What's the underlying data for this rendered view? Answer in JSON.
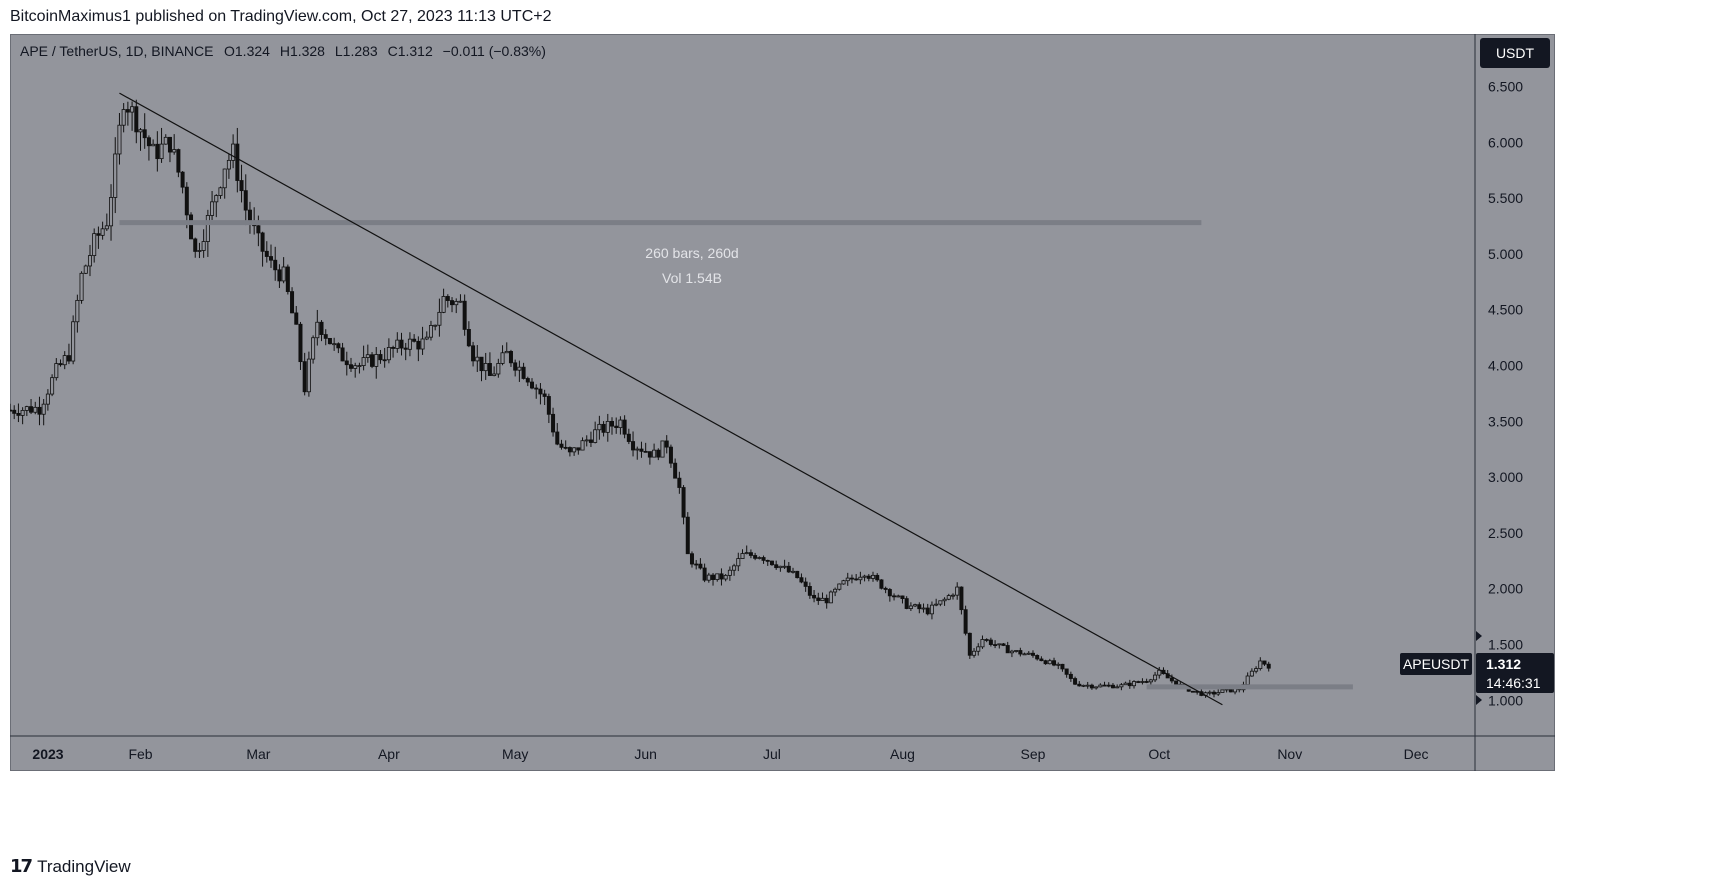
{
  "header": {
    "published_text": "BitcoinMaximus1 published on TradingView.com, Oct 27, 2023 11:13 UTC+2"
  },
  "footer": {
    "logo_text": "TradingView",
    "logo_icon": "tradingview-logo-icon"
  },
  "colors": {
    "background": "#93959c",
    "candle": "#111111",
    "frame": "#6b6e76"
  },
  "chart_data": {
    "type": "candlestick",
    "symbol_info": "APE / TetherUS, 1D, BINANCE",
    "ohlc": {
      "open": "O1.324",
      "high": "H1.328",
      "low": "L1.283",
      "close": "C1.312",
      "change": "−0.011 (−0.83%)"
    },
    "currency_label": "USDT",
    "ylim": [
      0.68,
      6.97
    ],
    "y_ticks": [
      "6.500",
      "6.000",
      "5.500",
      "5.000",
      "4.500",
      "4.000",
      "3.500",
      "3.000",
      "2.500",
      "2.000",
      "1.500",
      "1.000"
    ],
    "y_tick_values": [
      6.5,
      6.0,
      5.5,
      5.0,
      4.5,
      4.0,
      3.5,
      3.0,
      2.5,
      2.0,
      1.5,
      1.0
    ],
    "xlim": [
      "2023-01-01",
      "2023-12-15"
    ],
    "x_ticks": [
      {
        "label": "2023",
        "date": "2023-01-01"
      },
      {
        "label": "Feb",
        "date": "2023-02-01"
      },
      {
        "label": "Mar",
        "date": "2023-03-01"
      },
      {
        "label": "Apr",
        "date": "2023-04-01"
      },
      {
        "label": "May",
        "date": "2023-05-01"
      },
      {
        "label": "Jun",
        "date": "2023-06-01"
      },
      {
        "label": "Jul",
        "date": "2023-07-01"
      },
      {
        "label": "Aug",
        "date": "2023-08-01"
      },
      {
        "label": "Sep",
        "date": "2023-09-01"
      },
      {
        "label": "Oct",
        "date": "2023-10-01"
      },
      {
        "label": "Nov",
        "date": "2023-11-01"
      },
      {
        "label": "Dec",
        "date": "2023-12-01"
      }
    ],
    "series": [
      {
        "date": "2023-01-01",
        "close": 3.6
      },
      {
        "date": "2023-01-08",
        "close": 3.62
      },
      {
        "date": "2023-01-12",
        "close": 3.95
      },
      {
        "date": "2023-01-15",
        "close": 4.1
      },
      {
        "date": "2023-01-18",
        "close": 4.8
      },
      {
        "date": "2023-01-21",
        "close": 5.1
      },
      {
        "date": "2023-01-24",
        "close": 5.3
      },
      {
        "date": "2023-01-26",
        "close": 5.8
      },
      {
        "date": "2023-01-28",
        "close": 6.4
      },
      {
        "date": "2023-01-31",
        "close": 6.2
      },
      {
        "date": "2023-02-04",
        "close": 5.9
      },
      {
        "date": "2023-02-08",
        "close": 6.0
      },
      {
        "date": "2023-02-11",
        "close": 5.6
      },
      {
        "date": "2023-02-14",
        "close": 5.0
      },
      {
        "date": "2023-02-17",
        "close": 5.3
      },
      {
        "date": "2023-02-21",
        "close": 5.8
      },
      {
        "date": "2023-02-23",
        "close": 5.9
      },
      {
        "date": "2023-02-26",
        "close": 5.4
      },
      {
        "date": "2023-03-01",
        "close": 5.1
      },
      {
        "date": "2023-03-04",
        "close": 4.9
      },
      {
        "date": "2023-03-07",
        "close": 4.8
      },
      {
        "date": "2023-03-10",
        "close": 4.3
      },
      {
        "date": "2023-03-12",
        "close": 3.8
      },
      {
        "date": "2023-03-15",
        "close": 4.4
      },
      {
        "date": "2023-03-20",
        "close": 4.1
      },
      {
        "date": "2023-03-25",
        "close": 4.0
      },
      {
        "date": "2023-03-31",
        "close": 4.1
      },
      {
        "date": "2023-04-05",
        "close": 4.2
      },
      {
        "date": "2023-04-10",
        "close": 4.2
      },
      {
        "date": "2023-04-14",
        "close": 4.6
      },
      {
        "date": "2023-04-18",
        "close": 4.55
      },
      {
        "date": "2023-04-21",
        "close": 4.1
      },
      {
        "date": "2023-04-25",
        "close": 3.9
      },
      {
        "date": "2023-04-29",
        "close": 4.1
      },
      {
        "date": "2023-05-04",
        "close": 3.9
      },
      {
        "date": "2023-05-08",
        "close": 3.7
      },
      {
        "date": "2023-05-11",
        "close": 3.3
      },
      {
        "date": "2023-05-14",
        "close": 3.2
      },
      {
        "date": "2023-05-20",
        "close": 3.4
      },
      {
        "date": "2023-05-26",
        "close": 3.5
      },
      {
        "date": "2023-05-29",
        "close": 3.3
      },
      {
        "date": "2023-06-03",
        "close": 3.2
      },
      {
        "date": "2023-06-06",
        "close": 3.3
      },
      {
        "date": "2023-06-09",
        "close": 2.9
      },
      {
        "date": "2023-06-11",
        "close": 2.3
      },
      {
        "date": "2023-06-15",
        "close": 2.1
      },
      {
        "date": "2023-06-20",
        "close": 2.1
      },
      {
        "date": "2023-06-24",
        "close": 2.3
      },
      {
        "date": "2023-06-28",
        "close": 2.3
      },
      {
        "date": "2023-07-03",
        "close": 2.2
      },
      {
        "date": "2023-07-07",
        "close": 2.1
      },
      {
        "date": "2023-07-11",
        "close": 1.9
      },
      {
        "date": "2023-07-14",
        "close": 1.9
      },
      {
        "date": "2023-07-18",
        "close": 2.05
      },
      {
        "date": "2023-07-23",
        "close": 2.15
      },
      {
        "date": "2023-07-28",
        "close": 2.0
      },
      {
        "date": "2023-08-02",
        "close": 1.85
      },
      {
        "date": "2023-08-07",
        "close": 1.8
      },
      {
        "date": "2023-08-11",
        "close": 1.9
      },
      {
        "date": "2023-08-14",
        "close": 2.0
      },
      {
        "date": "2023-08-17",
        "close": 1.4
      },
      {
        "date": "2023-08-20",
        "close": 1.55
      },
      {
        "date": "2023-08-26",
        "close": 1.45
      },
      {
        "date": "2023-09-01",
        "close": 1.4
      },
      {
        "date": "2023-09-07",
        "close": 1.3
      },
      {
        "date": "2023-09-11",
        "close": 1.15
      },
      {
        "date": "2023-09-15",
        "close": 1.13
      },
      {
        "date": "2023-09-22",
        "close": 1.13
      },
      {
        "date": "2023-09-28",
        "close": 1.18
      },
      {
        "date": "2023-10-01",
        "close": 1.25
      },
      {
        "date": "2023-10-05",
        "close": 1.15
      },
      {
        "date": "2023-10-09",
        "close": 1.08
      },
      {
        "date": "2023-10-12",
        "close": 1.05
      },
      {
        "date": "2023-10-16",
        "close": 1.08
      },
      {
        "date": "2023-10-20",
        "close": 1.1
      },
      {
        "date": "2023-10-23",
        "close": 1.25
      },
      {
        "date": "2023-10-25",
        "close": 1.35
      },
      {
        "date": "2023-10-27",
        "close": 1.31
      }
    ],
    "trendline": [
      {
        "date": "2023-01-27",
        "value": 6.44
      },
      {
        "date": "2023-10-16",
        "value": 0.96
      }
    ],
    "horizontal_lines": [
      {
        "value": 5.28,
        "start": "2023-01-27",
        "end": "2023-10-11"
      },
      {
        "value": 1.12,
        "start": "2023-09-28",
        "end": "2023-11-16"
      }
    ],
    "measure_label": {
      "line1": "260 bars, 260d",
      "line2": "Vol 1.54B"
    },
    "price_marker": {
      "ticker": "APEUSDT",
      "price": "1.312",
      "countdown": "14:46:31"
    }
  }
}
